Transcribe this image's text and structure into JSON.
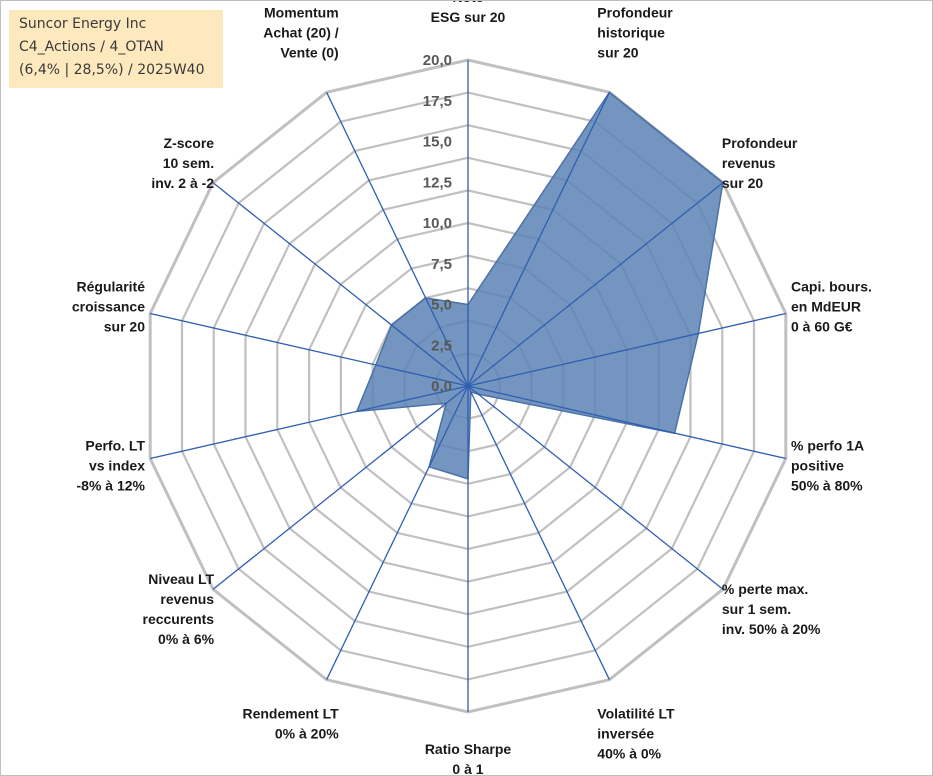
{
  "info_box": {
    "line1": "Suncor Energy Inc",
    "line2": "C4_Actions / 4_OTAN",
    "line3": "(6,4% | 28,5%) / 2025W40"
  },
  "colors": {
    "series_fill": "#5b82b4",
    "series_line": "#4a72a8",
    "spoke": "#2f5fb0",
    "ring": "#c0c0c0",
    "info_bg": "#fde9bd"
  },
  "chart_data": {
    "type": "radar",
    "title": "",
    "r_range": [
      0,
      20
    ],
    "r_ticks": [
      "0,0",
      "2,5",
      "5,0",
      "7,5",
      "10,0",
      "12,5",
      "15,0",
      "17,5",
      "20,0"
    ],
    "grid": true,
    "ring_count": 10,
    "categories": [
      [
        "Note",
        "ESG sur 20"
      ],
      [
        "Profondeur",
        "historique",
        "sur 20"
      ],
      [
        "Profondeur",
        "revenus",
        "sur 20"
      ],
      [
        "Capi. bours.",
        "en MdEUR",
        "0 à 60 G€"
      ],
      [
        "% perfo 1A",
        "positive",
        "50% à 80%"
      ],
      [
        "% perte max.",
        "sur 1 sem.",
        "inv. 50% à 20%"
      ],
      [
        "Volatilité LT",
        "inversée",
        "40% à 0%"
      ],
      [
        "Ratio Sharpe",
        "0 à 1"
      ],
      [
        "Rendement LT",
        "0% à 20%"
      ],
      [
        "Niveau LT",
        "revenus",
        "reccurents",
        "0% à 6%"
      ],
      [
        "Perfo. LT",
        "vs index",
        "-8% à 12%"
      ],
      [
        "Régularité",
        "croissance",
        "sur 20"
      ],
      [
        "Z-score",
        "10 sem.",
        "inv. 2 à -2"
      ],
      [
        "Momentum",
        "Achat (20) /",
        "Vente (0)"
      ]
    ],
    "series": [
      {
        "name": "Suncor Energy Inc",
        "values": [
          5.0,
          20.0,
          20.0,
          14.5,
          13.0,
          0.8,
          0.4,
          5.7,
          5.5,
          1.7,
          7.0,
          5.8,
          6.0,
          6.0
        ]
      }
    ]
  }
}
